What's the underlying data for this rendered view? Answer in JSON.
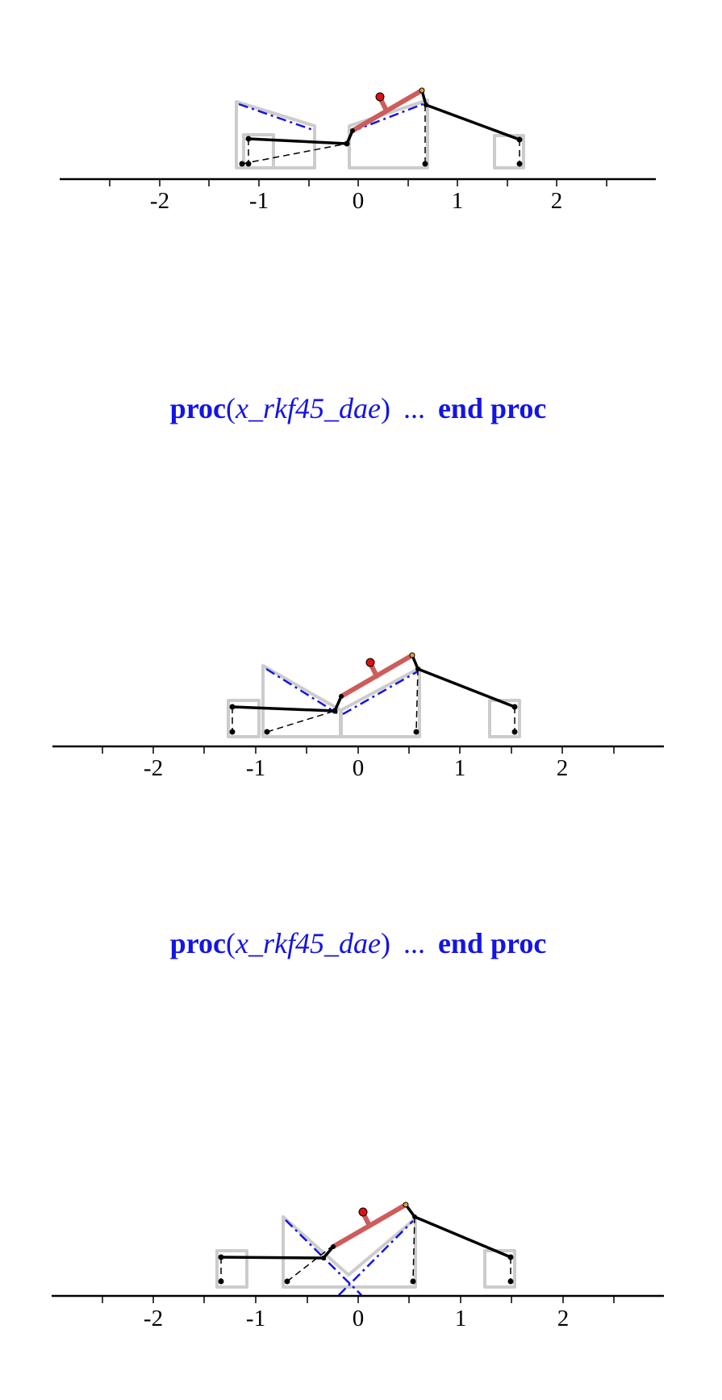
{
  "colors": {
    "axis": "#000000",
    "box": "#cccccc",
    "link": "#000000",
    "arm": "#cd5c5c",
    "ball": "#dd1111",
    "dashdot": "#1414e6",
    "proc_text": "#1414e6"
  },
  "axis_ticks": [
    "-2",
    "-1",
    "0",
    "1",
    "2"
  ],
  "proc_output": {
    "open_keyword": "proc",
    "open_paren": "(",
    "name": "x_rkf45_dae",
    "close_paren": ")",
    "ellipsis": "...",
    "close_keyword": "end proc"
  },
  "frames": [
    {
      "name": "frame-1",
      "show_proc_after": true
    },
    {
      "name": "frame-2",
      "show_proc_after": true
    },
    {
      "name": "frame-3",
      "show_proc_after": false
    }
  ]
}
